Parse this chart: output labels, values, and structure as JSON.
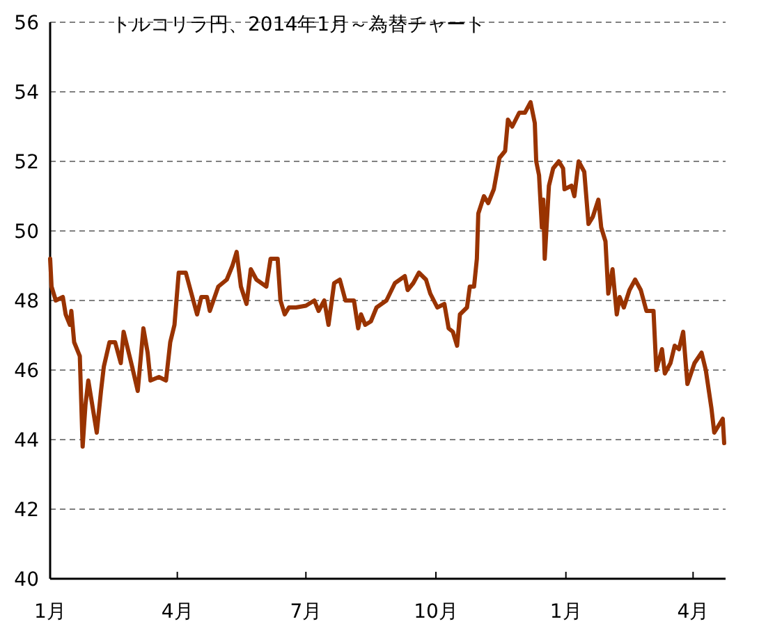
{
  "chart_data": {
    "type": "line",
    "title": "トルコリラ円、2014年1月～為替チャート",
    "x": [
      "2014-01-01",
      "2014-01-02",
      "2014-01-05",
      "2014-01-10",
      "2014-01-12",
      "2014-01-15",
      "2014-01-16",
      "2014-01-18",
      "2014-01-22",
      "2014-01-24",
      "2014-01-26",
      "2014-01-28",
      "2014-01-30",
      "2014-02-03",
      "2014-02-06",
      "2014-02-08",
      "2014-02-12",
      "2014-02-16",
      "2014-02-20",
      "2014-02-22",
      "2014-02-25",
      "2014-02-28",
      "2014-03-04",
      "2014-03-08",
      "2014-03-11",
      "2014-03-13",
      "2014-03-19",
      "2014-03-24",
      "2014-03-27",
      "2014-03-30",
      "2014-04-02",
      "2014-04-07",
      "2014-04-11",
      "2014-04-15",
      "2014-04-18",
      "2014-04-22",
      "2014-04-24",
      "2014-04-30",
      "2014-05-06",
      "2014-05-10",
      "2014-05-13",
      "2014-05-16",
      "2014-05-20",
      "2014-05-23",
      "2014-05-27",
      "2014-06-03",
      "2014-06-06",
      "2014-06-11",
      "2014-06-13",
      "2014-06-16",
      "2014-06-19",
      "2014-06-24",
      "2014-07-01",
      "2014-07-07",
      "2014-07-10",
      "2014-07-14",
      "2014-07-17",
      "2014-07-21",
      "2014-07-25",
      "2014-07-29",
      "2014-08-04",
      "2014-08-07",
      "2014-08-09",
      "2014-08-12",
      "2014-08-16",
      "2014-08-20",
      "2014-08-27",
      "2014-09-02",
      "2014-09-09",
      "2014-09-11",
      "2014-09-15",
      "2014-09-19",
      "2014-09-24",
      "2014-09-27",
      "2014-10-02",
      "2014-10-07",
      "2014-10-10",
      "2014-10-13",
      "2014-10-16",
      "2014-10-18",
      "2014-10-23",
      "2014-10-25",
      "2014-10-28",
      "2014-10-30",
      "2014-10-31",
      "2014-11-04",
      "2014-11-07",
      "2014-11-11",
      "2014-11-15",
      "2014-11-19",
      "2014-11-21",
      "2014-11-24",
      "2014-11-29",
      "2014-12-03",
      "2014-12-07",
      "2014-12-10",
      "2014-12-11",
      "2014-12-13",
      "2014-12-15",
      "2014-12-16",
      "2014-12-17",
      "2014-12-20",
      "2014-12-23",
      "2014-12-27",
      "2014-12-30",
      "2014-12-31",
      "2015-01-05",
      "2015-01-07",
      "2015-01-10",
      "2015-01-14",
      "2015-01-17",
      "2015-01-20",
      "2015-01-24",
      "2015-01-26",
      "2015-01-29",
      "2015-01-31",
      "2015-02-03",
      "2015-02-06",
      "2015-02-08",
      "2015-02-11",
      "2015-02-15",
      "2015-02-19",
      "2015-02-23",
      "2015-02-27",
      "2015-03-04",
      "2015-03-06",
      "2015-03-10",
      "2015-03-12",
      "2015-03-16",
      "2015-03-19",
      "2015-03-22",
      "2015-03-25",
      "2015-03-28",
      "2015-04-02",
      "2015-04-07",
      "2015-04-10",
      "2015-04-14",
      "2015-04-16",
      "2015-04-19",
      "2015-04-22",
      "2015-04-23"
    ],
    "series": [
      {
        "color": "#993300",
        "values": [
          49.2,
          48.4,
          48.0,
          48.1,
          47.6,
          47.3,
          47.7,
          46.8,
          46.4,
          43.8,
          45.0,
          45.7,
          45.2,
          44.2,
          45.4,
          46.1,
          46.8,
          46.8,
          46.2,
          47.1,
          46.6,
          46.1,
          45.4,
          47.2,
          46.5,
          45.7,
          45.8,
          45.7,
          46.8,
          47.3,
          48.8,
          48.8,
          48.2,
          47.6,
          48.1,
          48.1,
          47.7,
          48.4,
          48.6,
          49.0,
          49.4,
          48.4,
          47.9,
          48.9,
          48.6,
          48.4,
          49.2,
          49.2,
          48.0,
          47.6,
          47.8,
          47.8,
          47.85,
          48.0,
          47.7,
          48.0,
          47.3,
          48.5,
          48.6,
          48.0,
          48.0,
          47.2,
          47.6,
          47.3,
          47.4,
          47.8,
          48.0,
          48.5,
          48.7,
          48.3,
          48.5,
          48.8,
          48.6,
          48.2,
          47.8,
          47.9,
          47.2,
          47.1,
          46.7,
          47.6,
          47.8,
          48.4,
          48.4,
          49.2,
          50.5,
          51.0,
          50.8,
          51.2,
          52.1,
          52.3,
          53.2,
          53.0,
          53.4,
          53.4,
          53.7,
          53.1,
          52.0,
          51.6,
          50.1,
          50.9,
          49.2,
          51.3,
          51.8,
          52.0,
          51.8,
          51.2,
          51.3,
          51.0,
          52.0,
          51.7,
          50.2,
          50.4,
          50.9,
          50.1,
          49.7,
          48.2,
          48.9,
          47.6,
          48.1,
          47.8,
          48.3,
          48.6,
          48.3,
          47.7,
          47.7,
          46.0,
          46.6,
          45.9,
          46.2,
          46.7,
          46.6,
          47.1,
          45.6,
          46.2,
          46.5,
          46.0,
          44.9,
          44.2,
          44.4,
          44.6,
          43.9
        ]
      }
    ],
    "xlim": [
      "2014-01-01",
      "2015-04-24"
    ],
    "xticks": [
      {
        "value": "2014-01-01",
        "label": "1月"
      },
      {
        "value": "2014-04-01",
        "label": "4月"
      },
      {
        "value": "2014-07-01",
        "label": "7月"
      },
      {
        "value": "2014-10-01",
        "label": "10月"
      },
      {
        "value": "2015-01-01",
        "label": "1月"
      },
      {
        "value": "2015-04-01",
        "label": "4月"
      }
    ],
    "ylim": [
      40,
      56
    ],
    "yticks": [
      40,
      42,
      44,
      46,
      48,
      50,
      52,
      54,
      56
    ],
    "grid": "y"
  }
}
